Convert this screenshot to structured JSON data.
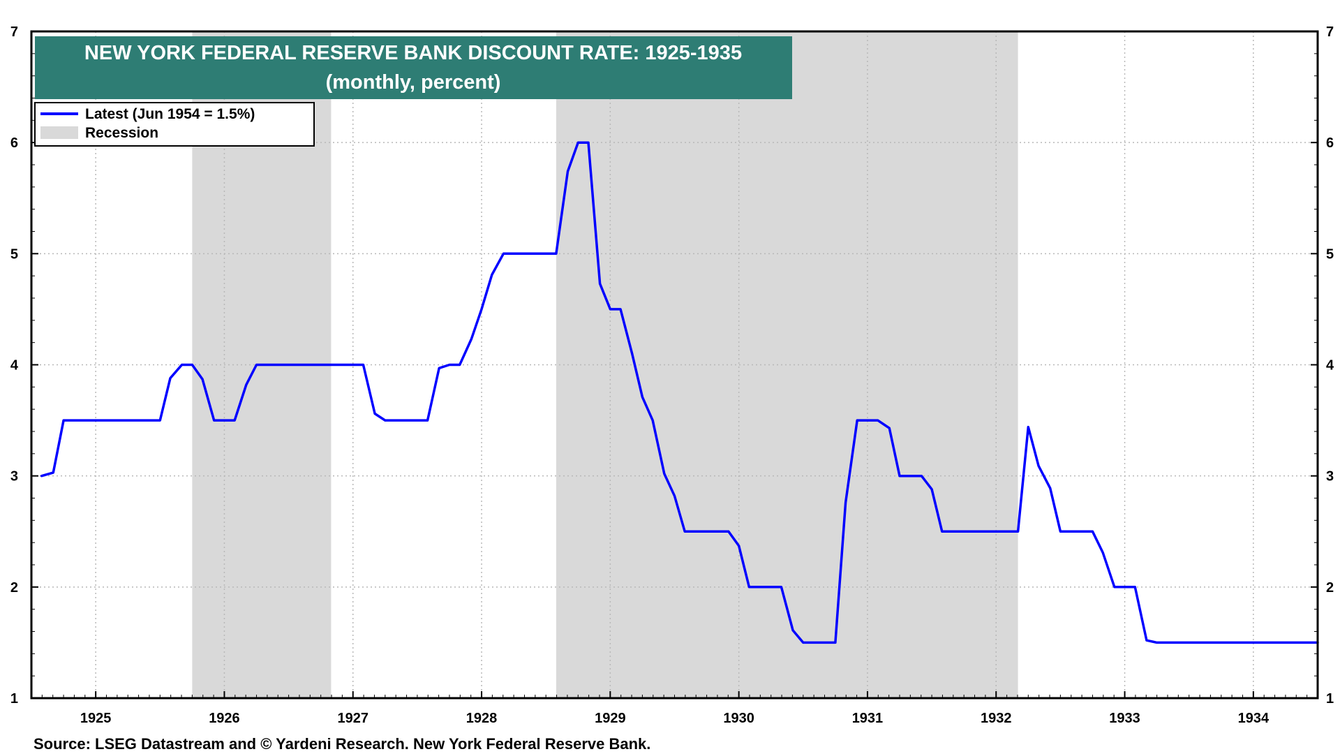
{
  "chart_data": {
    "type": "line",
    "title": "NEW YORK FEDERAL RESERVE BANK DISCOUNT RATE: 1925-1935",
    "subtitle": "(monthly, percent)",
    "ylim": [
      1,
      7
    ],
    "y_ticks": [
      "1",
      "2",
      "3",
      "4",
      "5",
      "6",
      "7"
    ],
    "x_tick_labels": [
      "1925",
      "1926",
      "1927",
      "1928",
      "1929",
      "1930",
      "1931",
      "1932",
      "1933",
      "1934"
    ],
    "xlim": [
      1924.5,
      1934.5
    ],
    "grid": true,
    "legend_position": "top-left",
    "legend": [
      {
        "label": "Latest (Jun 1954 = 1.5%)",
        "kind": "line",
        "color": "#0000ff"
      },
      {
        "label": "Recession",
        "kind": "band",
        "color": "#d9d9d9"
      }
    ],
    "recessions": [
      [
        1925.75,
        1926.83
      ],
      [
        1928.58,
        1932.17
      ]
    ],
    "series": [
      {
        "color": "#0000ff",
        "points": [
          [
            1924.58,
            3.0
          ],
          [
            1924.67,
            3.03
          ],
          [
            1924.75,
            3.5
          ],
          [
            1925.0,
            3.5
          ],
          [
            1925.25,
            3.5
          ],
          [
            1925.5,
            3.5
          ],
          [
            1925.58,
            3.88
          ],
          [
            1925.67,
            4.0
          ],
          [
            1925.75,
            4.0
          ],
          [
            1925.83,
            3.87
          ],
          [
            1925.92,
            3.5
          ],
          [
            1926.0,
            3.5
          ],
          [
            1926.08,
            3.5
          ],
          [
            1926.17,
            3.82
          ],
          [
            1926.25,
            4.0
          ],
          [
            1926.5,
            4.0
          ],
          [
            1926.75,
            4.0
          ],
          [
            1927.0,
            4.0
          ],
          [
            1927.08,
            4.0
          ],
          [
            1927.17,
            3.56
          ],
          [
            1927.25,
            3.5
          ],
          [
            1927.5,
            3.5
          ],
          [
            1927.58,
            3.5
          ],
          [
            1927.67,
            3.97
          ],
          [
            1927.75,
            4.0
          ],
          [
            1927.83,
            4.0
          ],
          [
            1927.92,
            4.23
          ],
          [
            1928.0,
            4.5
          ],
          [
            1928.08,
            4.81
          ],
          [
            1928.17,
            5.0
          ],
          [
            1928.42,
            5.0
          ],
          [
            1928.58,
            5.0
          ],
          [
            1928.67,
            5.74
          ],
          [
            1928.75,
            6.0
          ],
          [
            1928.83,
            6.0
          ],
          [
            1928.92,
            4.73
          ],
          [
            1929.0,
            4.5
          ],
          [
            1929.08,
            4.5
          ],
          [
            1929.17,
            4.1
          ],
          [
            1929.25,
            3.71
          ],
          [
            1929.33,
            3.5
          ],
          [
            1929.42,
            3.02
          ],
          [
            1929.5,
            2.82
          ],
          [
            1929.58,
            2.5
          ],
          [
            1929.75,
            2.5
          ],
          [
            1929.92,
            2.5
          ],
          [
            1930.0,
            2.37
          ],
          [
            1930.08,
            2.0
          ],
          [
            1930.25,
            2.0
          ],
          [
            1930.33,
            2.0
          ],
          [
            1930.42,
            1.61
          ],
          [
            1930.5,
            1.5
          ],
          [
            1930.67,
            1.5
          ],
          [
            1930.75,
            1.5
          ],
          [
            1930.83,
            2.76
          ],
          [
            1930.92,
            3.5
          ],
          [
            1931.0,
            3.5
          ],
          [
            1931.08,
            3.5
          ],
          [
            1931.17,
            3.43
          ],
          [
            1931.25,
            3.0
          ],
          [
            1931.33,
            3.0
          ],
          [
            1931.42,
            3.0
          ],
          [
            1931.5,
            2.88
          ],
          [
            1931.58,
            2.5
          ],
          [
            1931.75,
            2.5
          ],
          [
            1932.0,
            2.5
          ],
          [
            1932.17,
            2.5
          ],
          [
            1932.25,
            3.44
          ],
          [
            1932.33,
            3.09
          ],
          [
            1932.42,
            2.89
          ],
          [
            1932.5,
            2.5
          ],
          [
            1932.58,
            2.5
          ],
          [
            1932.67,
            2.5
          ],
          [
            1932.75,
            2.5
          ],
          [
            1932.83,
            2.31
          ],
          [
            1932.92,
            2.0
          ],
          [
            1933.0,
            2.0
          ],
          [
            1933.08,
            2.0
          ],
          [
            1933.17,
            1.52
          ],
          [
            1933.25,
            1.5
          ],
          [
            1933.5,
            1.5
          ],
          [
            1934.0,
            1.5
          ],
          [
            1934.5,
            1.5
          ]
        ]
      }
    ]
  },
  "source": "Source: LSEG Datastream and © Yardeni Research. New York Federal Reserve Bank."
}
